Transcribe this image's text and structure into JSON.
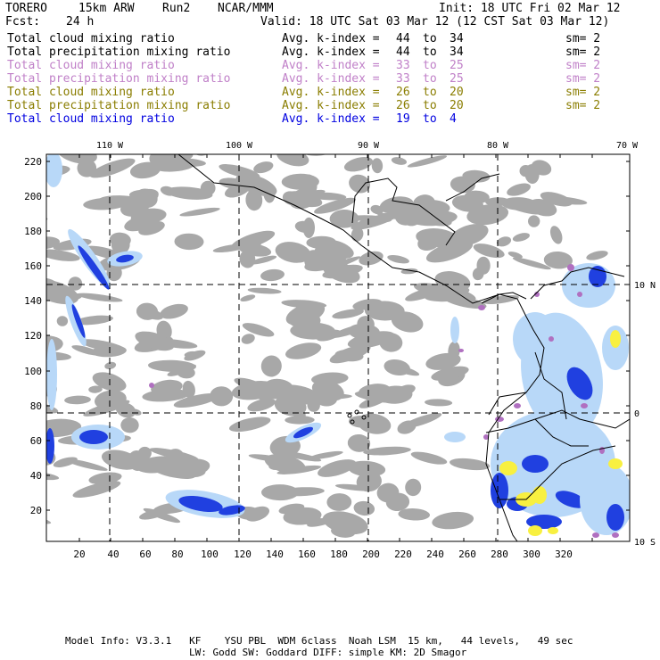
{
  "header": {
    "model": "TORERO",
    "resolution": "15km ARW",
    "run": "Run2",
    "source": "NCAR/MMM",
    "init": "Init: 18 UTC Fri 02 Mar 12",
    "fcst_label": "Fcst:",
    "fcst_value": "24 h",
    "valid": "Valid: 18 UTC Sat 03 Mar 12 (12 CST Sat 03 Mar 12)"
  },
  "legend": [
    {
      "name": "Total cloud mixing ratio",
      "kindex": "Avg. k-index =",
      "from": "44",
      "to_word": "to",
      "to": "34",
      "sm": "sm= 2",
      "color": "#000000"
    },
    {
      "name": "Total precipitation mixing ratio",
      "kindex": "Avg. k-index =",
      "from": "44",
      "to_word": "to",
      "to": "34",
      "sm": "sm= 2",
      "color": "#000000"
    },
    {
      "name": "Total cloud mixing ratio",
      "kindex": "Avg. k-index =",
      "from": "33",
      "to_word": "to",
      "to": "25",
      "sm": "sm= 2",
      "color": "#c080c8"
    },
    {
      "name": "Total precipitation mixing ratio",
      "kindex": "Avg. k-index =",
      "from": "33",
      "to_word": "to",
      "to": "25",
      "sm": "sm= 2",
      "color": "#c080c8"
    },
    {
      "name": "Total cloud mixing ratio",
      "kindex": "Avg. k-index =",
      "from": "26",
      "to_word": "to",
      "to": "20",
      "sm": "sm= 2",
      "color": "#8a7d00"
    },
    {
      "name": "Total precipitation mixing ratio",
      "kindex": "Avg. k-index =",
      "from": "26",
      "to_word": "to",
      "to": "20",
      "sm": "sm= 2",
      "color": "#8a7d00"
    },
    {
      "name": "Total cloud mixing ratio",
      "kindex": "Avg. k-index =",
      "from": "19",
      "to_word": "to",
      "to": "4",
      "sm": "",
      "color": "#0000e0"
    }
  ],
  "map": {
    "lon_labels": [
      "110 W",
      "100 W",
      "90 W",
      "80 W",
      "70 W"
    ],
    "lat_labels": [
      "10 N",
      "0",
      "10 S"
    ],
    "x_ticks": [
      "20",
      "40",
      "60",
      "80",
      "100",
      "120",
      "140",
      "160",
      "180",
      "200",
      "220",
      "240",
      "260",
      "280",
      "300",
      "320"
    ],
    "y_ticks": [
      "220",
      "200",
      "180",
      "160",
      "140",
      "120",
      "100",
      "80",
      "60",
      "40",
      "20"
    ],
    "colors": {
      "cloud_gray": "#a8a8a8",
      "light_blue": "#b8d8f8",
      "blue": "#2040e0",
      "dark_blue": "#0000b0",
      "purple": "#b070c0",
      "yellow": "#f8f040",
      "coast": "#000000"
    }
  },
  "footer": {
    "line1": "Model Info: V3.3.1   KF    YSU PBL  WDM 6class  Noah LSM  15 km,   44 levels,   49 sec",
    "line2": "LW: Godd SW: Goddard DIFF: simple KM: 2D Smagor"
  }
}
